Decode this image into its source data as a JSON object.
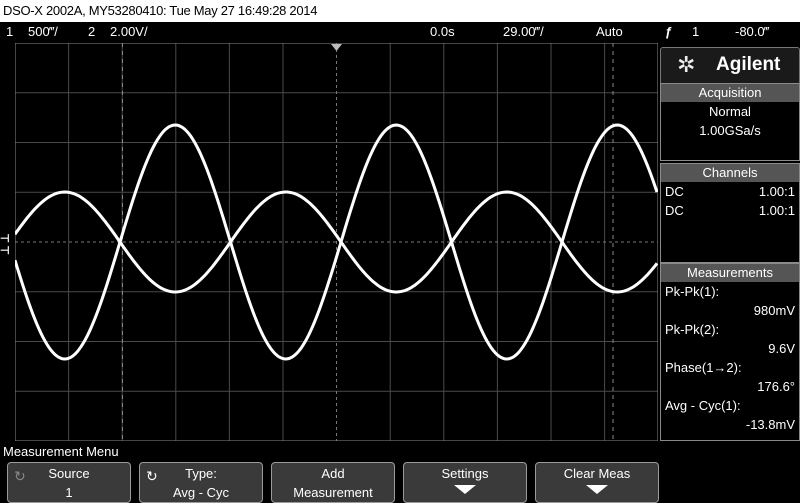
{
  "title": "DSO-X 2002A, MY53280410: Tue May 27 16:49:28 2014",
  "status": {
    "ch1_num": "1",
    "ch1_scale": "500‴/",
    "ch2_num": "2",
    "ch2_scale": "2.00V/",
    "time_pos": "0.0s",
    "time_scale": "29.00‴/",
    "trigger_mode": "Auto",
    "trigger_icon": "ƒ",
    "trigger_ch": "1",
    "trigger_level": "-80.0‴"
  },
  "brand": {
    "name": "Agilent",
    "logo_icon": "agilent-spark-icon"
  },
  "acquisition": {
    "header": "Acquisition",
    "mode": "Normal",
    "rate": "1.00GSa/s"
  },
  "channels": {
    "header": "Channels",
    "rows": [
      {
        "coupling": "DC",
        "probe": "1.00:1"
      },
      {
        "coupling": "DC",
        "probe": "1.00:1"
      }
    ]
  },
  "measurements": {
    "header": "Measurements",
    "items": [
      {
        "label": "Pk-Pk(1):",
        "value": "980mV"
      },
      {
        "label": "Pk-Pk(2):",
        "value": "9.6V"
      },
      {
        "label": "Phase(1→2):",
        "value": "176.6°"
      },
      {
        "label": "Avg - Cyc(1):",
        "value": "-13.8mV"
      }
    ]
  },
  "menu": {
    "title": "Measurement Menu",
    "keys": [
      {
        "line1": "Source",
        "line2": "1"
      },
      {
        "line1": "Type:",
        "line2": "Avg - Cyc"
      },
      {
        "line1": "Add",
        "line2": "Measurement"
      },
      {
        "line1": "Settings",
        "line2": ""
      },
      {
        "line1": "Clear Meas",
        "line2": ""
      }
    ]
  },
  "colors": {
    "trace": "#ffffff",
    "grid": "#5a5a5a",
    "header_gray": "#555555"
  }
}
